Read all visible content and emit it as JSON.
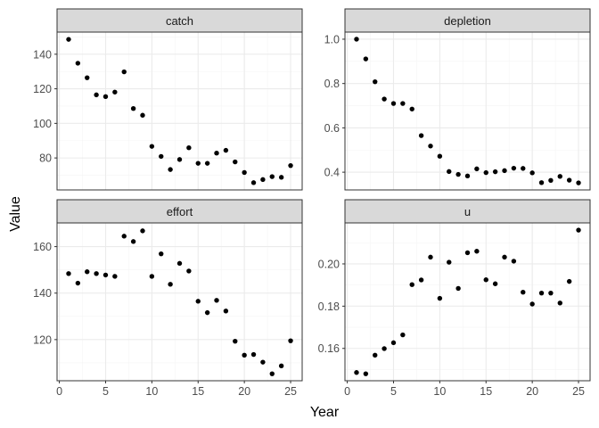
{
  "chart_data": {
    "type": "scatter",
    "xlabel": "Year",
    "ylabel": "Value",
    "x_ticks": [
      0,
      5,
      10,
      15,
      20,
      25
    ],
    "xlim": [
      -0.25,
      26.25
    ],
    "grid": true,
    "colors": {
      "panel_bg": "#ffffff",
      "strip_bg": "#d9d9d9",
      "grid_major": "#ebebeb",
      "grid_minor": "#f5f5f5",
      "point": "#000000",
      "border": "#333333"
    },
    "panels": [
      {
        "title": "catch",
        "x": [
          1,
          2,
          3,
          4,
          5,
          6,
          7,
          8,
          9,
          10,
          11,
          12,
          13,
          14,
          15,
          16,
          17,
          18,
          19,
          20,
          21,
          22,
          23,
          24,
          25
        ],
        "y": [
          148.6,
          134.8,
          126.4,
          116.5,
          115.5,
          118.1,
          129.8,
          108.6,
          104.7,
          86.7,
          80.9,
          73.3,
          79.1,
          85.9,
          76.9,
          76.9,
          82.8,
          84.4,
          77.7,
          71.6,
          65.7,
          67.5,
          69.2,
          68.8,
          75.6
        ],
        "y_ticks": [
          80,
          100,
          120,
          140
        ],
        "ylim": [
          61.5,
          152.8
        ]
      },
      {
        "title": "depletion",
        "x": [
          1,
          2,
          3,
          4,
          5,
          6,
          7,
          8,
          9,
          10,
          11,
          12,
          13,
          14,
          15,
          16,
          17,
          18,
          19,
          20,
          21,
          22,
          23,
          24,
          25
        ],
        "y": [
          1.0,
          0.911,
          0.808,
          0.73,
          0.71,
          0.71,
          0.685,
          0.565,
          0.518,
          0.472,
          0.403,
          0.39,
          0.383,
          0.415,
          0.398,
          0.402,
          0.407,
          0.418,
          0.417,
          0.397,
          0.353,
          0.363,
          0.381,
          0.364,
          0.352
        ],
        "y_ticks": [
          0.4,
          0.6,
          0.8,
          1.0
        ],
        "ylim": [
          0.32,
          1.032
        ]
      },
      {
        "title": "effort",
        "x": [
          1,
          2,
          3,
          4,
          5,
          6,
          7,
          8,
          9,
          10,
          11,
          12,
          13,
          14,
          15,
          16,
          17,
          18,
          19,
          20,
          21,
          22,
          23,
          24,
          25
        ],
        "y": [
          148.4,
          144.3,
          149.2,
          148.4,
          147.8,
          147.2,
          164.5,
          162.2,
          166.8,
          147.2,
          156.9,
          143.8,
          152.8,
          149.5,
          136.5,
          131.6,
          136.9,
          132.3,
          119.3,
          113.3,
          113.6,
          110.3,
          105.3,
          108.7,
          119.5
        ],
        "y_ticks": [
          120,
          140,
          160
        ],
        "ylim": [
          102.3,
          170.2
        ]
      },
      {
        "title": "u",
        "x": [
          1,
          2,
          3,
          4,
          5,
          6,
          7,
          8,
          9,
          10,
          11,
          12,
          13,
          14,
          15,
          16,
          17,
          18,
          19,
          20,
          21,
          22,
          23,
          24,
          25
        ],
        "y": [
          0.1486,
          0.148,
          0.1568,
          0.1599,
          0.1627,
          0.1664,
          0.1902,
          0.1924,
          0.2032,
          0.1837,
          0.2008,
          0.1884,
          0.2053,
          0.206,
          0.1925,
          0.1906,
          0.2032,
          0.2013,
          0.1866,
          0.181,
          0.1862,
          0.1862,
          0.1815,
          0.1917,
          0.216
        ],
        "y_ticks": [
          0.16,
          0.18,
          0.2
        ],
        "ylim": [
          0.1447,
          0.2194
        ]
      }
    ]
  }
}
